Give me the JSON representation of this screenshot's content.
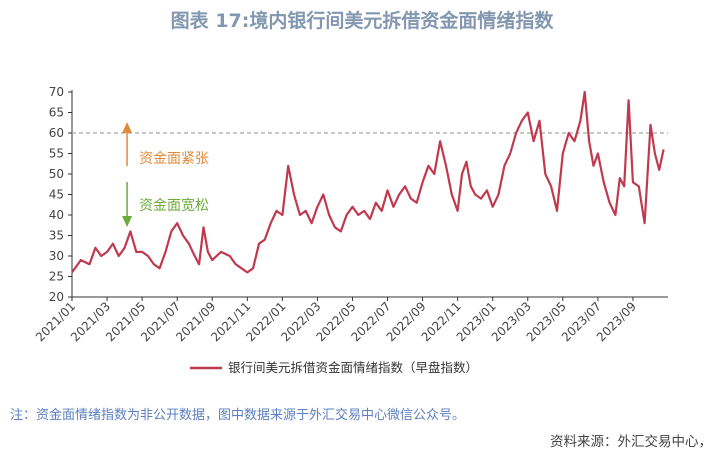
{
  "title": "图表 17:境内银行间美元拆借资金面情绪指数",
  "note": "注：资金面情绪指数为非公开数据，图中数据来源于外汇交易中心微信公众号。",
  "source": "资料来源：外汇交易中心，",
  "colors": {
    "series": "#c0394f",
    "up_arrow": "#e08a3c",
    "down_arrow": "#6aab3b",
    "title": "#8497b0",
    "note": "#5b7fbf",
    "reference_line": "#a6a6a6"
  },
  "chart_data": {
    "type": "line",
    "ylim": [
      20,
      70
    ],
    "y_ticks": [
      20,
      25,
      30,
      35,
      40,
      45,
      50,
      55,
      60,
      65,
      70
    ],
    "x_ticks": [
      "2021/01",
      "2021/03",
      "2021/05",
      "2021/07",
      "2021/09",
      "2021/11",
      "2022/01",
      "2022/03",
      "2022/05",
      "2022/07",
      "2022/09",
      "2022/11",
      "2023/01",
      "2023/03",
      "2023/05",
      "2023/07",
      "2023/09"
    ],
    "reference_line": 60,
    "annotations": [
      {
        "text": "资金面紧张",
        "arrow": "up",
        "x": "2021/03"
      },
      {
        "text": "资金面宽松",
        "arrow": "down",
        "x": "2021/03"
      }
    ],
    "series": [
      {
        "name": "银行间美元拆借资金面情绪指数（早盘指数）",
        "points": [
          [
            "2021/01",
            26
          ],
          [
            "2021/01",
            29
          ],
          [
            "2021/02",
            28
          ],
          [
            "2021/02",
            32
          ],
          [
            "2021/02",
            30
          ],
          [
            "2021/03",
            31
          ],
          [
            "2021/03",
            33
          ],
          [
            "2021/03",
            30
          ],
          [
            "2021/04",
            32
          ],
          [
            "2021/04",
            36
          ],
          [
            "2021/04",
            31
          ],
          [
            "2021/05",
            31
          ],
          [
            "2021/05",
            30
          ],
          [
            "2021/05",
            28
          ],
          [
            "2021/06",
            27
          ],
          [
            "2021/06",
            31
          ],
          [
            "2021/06",
            36
          ],
          [
            "2021/07",
            38
          ],
          [
            "2021/07",
            35
          ],
          [
            "2021/07",
            33
          ],
          [
            "2021/08",
            30
          ],
          [
            "2021/08",
            28
          ],
          [
            "2021/08",
            37
          ],
          [
            "2021/08",
            31
          ],
          [
            "2021/09",
            29
          ],
          [
            "2021/09",
            31
          ],
          [
            "2021/10",
            30
          ],
          [
            "2021/10",
            28
          ],
          [
            "2021/10",
            27
          ],
          [
            "2021/11",
            26
          ],
          [
            "2021/11",
            27
          ],
          [
            "2021/11",
            33
          ],
          [
            "2021/12",
            34
          ],
          [
            "2021/12",
            38
          ],
          [
            "2021/12",
            41
          ],
          [
            "2022/01",
            40
          ],
          [
            "2022/01",
            52
          ],
          [
            "2022/01",
            45
          ],
          [
            "2022/02",
            40
          ],
          [
            "2022/02",
            41
          ],
          [
            "2022/02",
            38
          ],
          [
            "2022/03",
            42
          ],
          [
            "2022/03",
            45
          ],
          [
            "2022/03",
            40
          ],
          [
            "2022/04",
            37
          ],
          [
            "2022/04",
            36
          ],
          [
            "2022/04",
            40
          ],
          [
            "2022/05",
            42
          ],
          [
            "2022/05",
            40
          ],
          [
            "2022/05",
            41
          ],
          [
            "2022/06",
            39
          ],
          [
            "2022/06",
            43
          ],
          [
            "2022/06",
            41
          ],
          [
            "2022/07",
            46
          ],
          [
            "2022/07",
            42
          ],
          [
            "2022/07",
            45
          ],
          [
            "2022/08",
            47
          ],
          [
            "2022/08",
            44
          ],
          [
            "2022/08",
            43
          ],
          [
            "2022/09",
            48
          ],
          [
            "2022/09",
            52
          ],
          [
            "2022/09",
            50
          ],
          [
            "2022/10",
            58
          ],
          [
            "2022/10",
            52
          ],
          [
            "2022/10",
            45
          ],
          [
            "2022/11",
            41
          ],
          [
            "2022/11",
            50
          ],
          [
            "2022/11",
            53
          ],
          [
            "2022/11",
            47
          ],
          [
            "2022/12",
            45
          ],
          [
            "2022/12",
            44
          ],
          [
            "2022/12",
            46
          ],
          [
            "2023/01",
            42
          ],
          [
            "2023/01",
            45
          ],
          [
            "2023/01",
            52
          ],
          [
            "2023/02",
            55
          ],
          [
            "2023/02",
            60
          ],
          [
            "2023/02",
            63
          ],
          [
            "2023/03",
            65
          ],
          [
            "2023/03",
            58
          ],
          [
            "2023/03",
            63
          ],
          [
            "2023/04",
            50
          ],
          [
            "2023/04",
            47
          ],
          [
            "2023/04",
            41
          ],
          [
            "2023/05",
            55
          ],
          [
            "2023/05",
            60
          ],
          [
            "2023/05",
            58
          ],
          [
            "2023/06",
            63
          ],
          [
            "2023/06",
            70
          ],
          [
            "2023/06",
            58
          ],
          [
            "2023/06",
            52
          ],
          [
            "2023/07",
            55
          ],
          [
            "2023/07",
            48
          ],
          [
            "2023/07",
            43
          ],
          [
            "2023/08",
            40
          ],
          [
            "2023/08",
            49
          ],
          [
            "2023/08",
            47
          ],
          [
            "2023/08",
            68
          ],
          [
            "2023/09",
            48
          ],
          [
            "2023/09",
            47
          ],
          [
            "2023/09",
            38
          ],
          [
            "2023/10",
            62
          ],
          [
            "2023/10",
            55
          ],
          [
            "2023/10",
            51
          ],
          [
            "2023/10",
            56
          ]
        ]
      }
    ],
    "xlabel": "",
    "ylabel": ""
  }
}
